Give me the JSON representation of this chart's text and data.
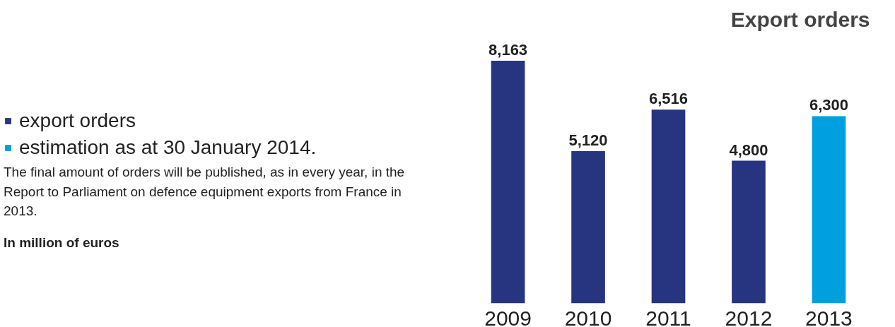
{
  "chart_data": {
    "type": "bar",
    "title": "Export orders",
    "categories": [
      "2009",
      "2010",
      "2011",
      "2012",
      "2013"
    ],
    "series": [
      {
        "name": "export orders",
        "color": "#27347f",
        "values": [
          8163,
          5120,
          6516,
          4800,
          null
        ],
        "value_labels": [
          "8,163",
          "5,120",
          "6,516",
          "4,800",
          null
        ]
      },
      {
        "name": "estimation as at 30 January 2014.",
        "color": "#00a0e0",
        "values": [
          null,
          null,
          null,
          null,
          6300
        ],
        "value_labels": [
          null,
          null,
          null,
          null,
          "6,300"
        ]
      }
    ],
    "legend": "left",
    "grid": false,
    "tick_labels": "x",
    "annotations": [
      "The final amount of orders will be published, as in every year, in the Report to Parliament on defence equipment exports from France in 2013.",
      "In million of euros"
    ]
  }
}
